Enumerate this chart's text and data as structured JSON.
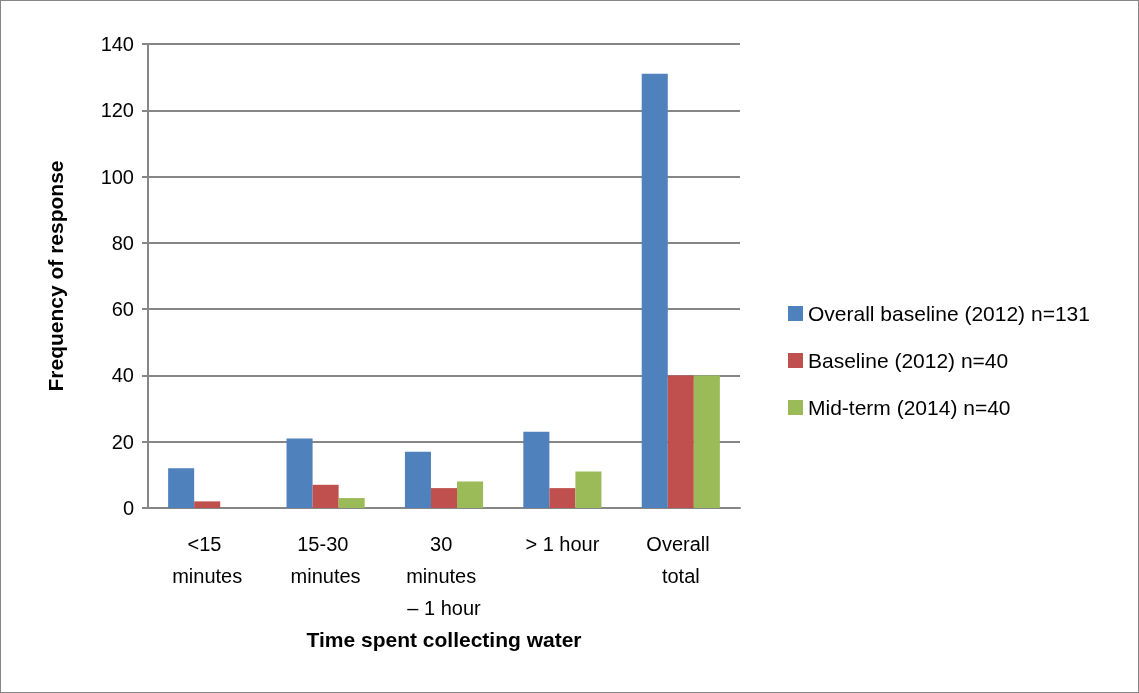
{
  "chart_data": {
    "type": "bar",
    "xlabel": "Time spent collecting water",
    "ylabel": "Frequency of response",
    "categories": [
      "<15 minutes",
      "15-30 minutes",
      "30 minutes – 1 hour",
      "> 1 hour",
      "Overall total"
    ],
    "series": [
      {
        "name": "Overall baseline (2012) n=131",
        "color": "#4f81bd",
        "values": [
          12,
          21,
          17,
          23,
          131
        ]
      },
      {
        "name": "Baseline (2012) n=40",
        "color": "#c0504d",
        "values": [
          2,
          7,
          6,
          6,
          40
        ]
      },
      {
        "name": "Mid-term (2014) n=40",
        "color": "#9bbb59",
        "values": [
          0,
          3,
          8,
          11,
          40
        ]
      }
    ],
    "ylim": [
      0,
      140
    ],
    "yticks": [
      0,
      20,
      40,
      60,
      80,
      100,
      120,
      140
    ],
    "grid": "y",
    "legend": "right"
  }
}
